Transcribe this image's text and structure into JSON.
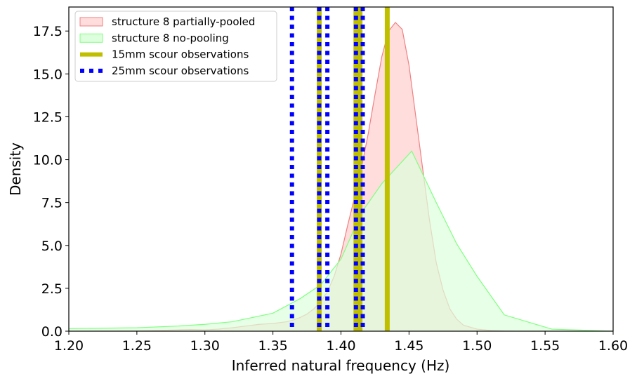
{
  "chart_data": {
    "type": "area",
    "xlabel": "Inferred natural frequency (Hz)",
    "ylabel": "Density",
    "xlim": [
      1.2,
      1.6
    ],
    "ylim": [
      0,
      18.9
    ],
    "x_ticks": [
      1.2,
      1.25,
      1.3,
      1.35,
      1.4,
      1.45,
      1.5,
      1.55,
      1.6
    ],
    "x_tick_labels": [
      "1.20",
      "1.25",
      "1.30",
      "1.35",
      "1.40",
      "1.45",
      "1.50",
      "1.55",
      "1.60"
    ],
    "y_ticks": [
      0,
      2.5,
      5,
      7.5,
      10,
      12.5,
      15,
      17.5
    ],
    "y_tick_labels": [
      "0.0",
      "2.5",
      "5.0",
      "7.5",
      "10.0",
      "12.5",
      "15.0",
      "17.5"
    ],
    "grid": false,
    "legend_position": "top-left",
    "series": [
      {
        "name": "structure 8 partially-pooled",
        "kind": "filled-density",
        "fill": "#ffdddd",
        "stroke": "#f08080",
        "x": [
          1.2,
          1.25,
          1.27,
          1.28,
          1.29,
          1.3,
          1.31,
          1.32,
          1.33,
          1.34,
          1.35,
          1.36,
          1.365,
          1.37,
          1.375,
          1.38,
          1.385,
          1.39,
          1.395,
          1.4,
          1.405,
          1.41,
          1.415,
          1.42,
          1.425,
          1.43,
          1.435,
          1.44,
          1.445,
          1.45,
          1.455,
          1.46,
          1.465,
          1.47,
          1.475,
          1.48,
          1.485,
          1.49,
          1.5,
          1.51,
          1.52,
          1.53,
          1.55,
          1.6
        ],
        "values": [
          0.0,
          0.02,
          0.05,
          0.08,
          0.1,
          0.08,
          0.12,
          0.2,
          0.3,
          0.4,
          0.45,
          0.55,
          0.65,
          0.8,
          1.0,
          1.3,
          1.7,
          2.3,
          3.2,
          4.5,
          6.2,
          7.8,
          9.5,
          11.5,
          13.8,
          16.0,
          17.5,
          18.0,
          17.6,
          15.5,
          12.5,
          9.5,
          6.5,
          4.0,
          2.4,
          1.3,
          0.7,
          0.35,
          0.12,
          0.04,
          0.01,
          0.0,
          0.0,
          0.0
        ]
      },
      {
        "name": "structure 8 no-pooling",
        "kind": "filled-density",
        "fill": "#ddffdd",
        "stroke": "#80ff80",
        "x": [
          1.2,
          1.25,
          1.28,
          1.3,
          1.32,
          1.35,
          1.37,
          1.385,
          1.4,
          1.415,
          1.43,
          1.452,
          1.47,
          1.485,
          1.5,
          1.52,
          1.555,
          1.6
        ],
        "values": [
          0.15,
          0.2,
          0.3,
          0.4,
          0.55,
          1.05,
          1.9,
          2.7,
          4.2,
          6.9,
          8.6,
          10.5,
          7.5,
          5.1,
          3.2,
          0.95,
          0.12,
          0.0
        ]
      }
    ],
    "vertical_lines": [
      {
        "name": "15mm scour observations",
        "style": "solid",
        "color": "#bfbf00",
        "x": [
          1.384,
          1.411,
          1.414,
          1.434
        ]
      },
      {
        "name": "25mm scour observations",
        "style": "dotted",
        "color": "#0000ff",
        "x": [
          1.364,
          1.384,
          1.39,
          1.411,
          1.416
        ]
      }
    ]
  }
}
